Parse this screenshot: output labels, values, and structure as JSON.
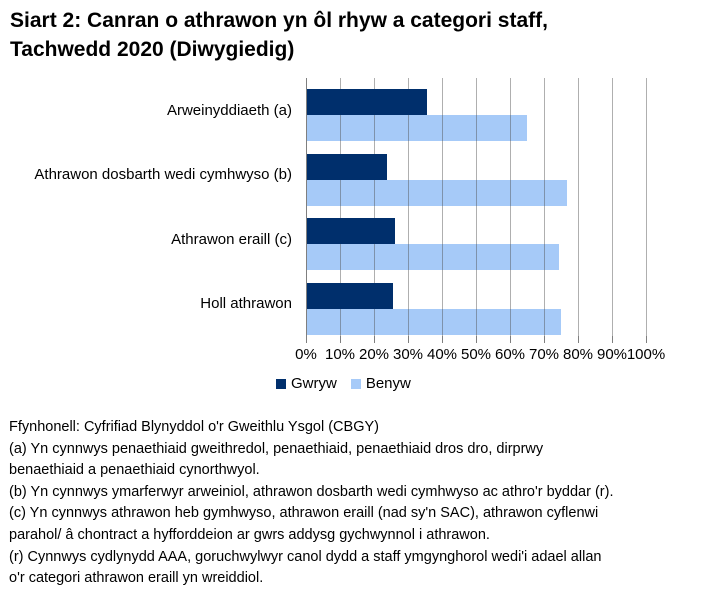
{
  "title_lines": [
    "Siart 2: Canran o athrawon yn ôl rhyw a categori staff,",
    "Tachwedd 2020 (Diwygiedig)"
  ],
  "chart_data": {
    "type": "bar",
    "orientation": "horizontal",
    "title": "Siart 2: Canran o athrawon yn ôl rhyw a categori staff, Tachwedd 2020 (Diwygiedig)",
    "categories": [
      "Arweinyddiaeth (a)",
      "Athrawon dosbarth wedi cymhwyso (b)",
      "Athrawon eraill (c)",
      "Holl athrawon"
    ],
    "series": [
      {
        "name": "Gwryw",
        "color": "#002F6C",
        "values": [
          35.3,
          23.5,
          25.9,
          25.2
        ]
      },
      {
        "name": "Benyw",
        "color": "#A6CAF8",
        "values": [
          64.7,
          76.5,
          74.1,
          74.8
        ]
      }
    ],
    "x_ticks": [
      "0%",
      "10%",
      "20%",
      "30%",
      "40%",
      "50%",
      "60%",
      "70%",
      "80%",
      "90%",
      "100%"
    ],
    "xlim": [
      0,
      100
    ],
    "unit": "%",
    "grid": true,
    "legend_position": "bottom"
  },
  "colors": {
    "gwryw": "#002F6C",
    "benyw": "#A6CAF8",
    "gridline": "#A6A6A6",
    "axis": "#7F7F7F",
    "text": "#000000",
    "background": "#FFFFFF"
  },
  "footnotes": [
    "Ffynhonell: Cyfrifiad Blynyddol o'r Gweithlu Ysgol (CBGY)",
    "(a) Yn cynnwys penaethiaid gweithredol, penaethiaid, penaethiaid dros dro, dirprwy\nbenaethiaid a penaethiaid cynorthwyol.",
    "(b) Yn cynnwys ymarferwyr arweiniol, athrawon dosbarth wedi cymhwyso ac athro'r byddar (r).",
    "(c) Yn cynnwys athrawon heb gymhwyso, athrawon eraill (nad sy'n SAC), athrawon cyflenwi\nparahol/ â chontract a hyfforddeion ar gwrs addysg gychwynnol i athrawon.",
    "(r) Cynnwys cydlynydd AAA, goruchwylwyr canol dydd a staff ymgynghorol wedi'i adael allan\no'r categori athrawon eraill yn wreiddiol."
  ]
}
